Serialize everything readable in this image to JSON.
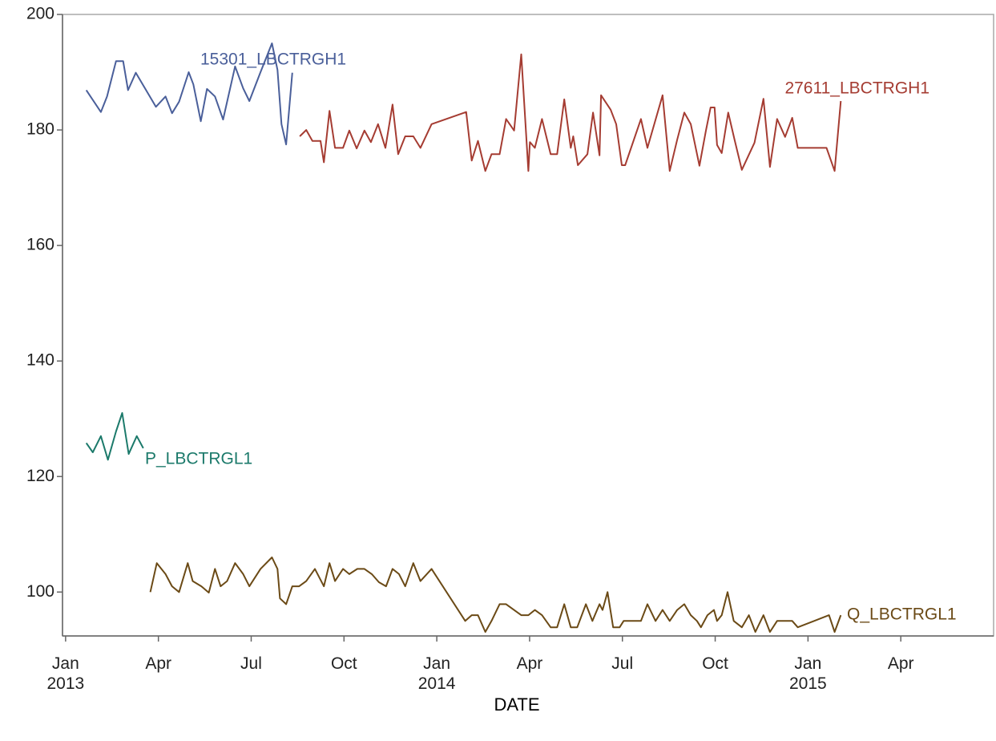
{
  "chart_data": {
    "type": "line",
    "x_label": "DATE",
    "xlim": [
      -0.1,
      30
    ],
    "ylim": [
      92.4,
      200
    ],
    "xticks": [
      {
        "value": 0,
        "label": "Jan 2013"
      },
      {
        "value": 3,
        "label": "Apr"
      },
      {
        "value": 6,
        "label": "Jul"
      },
      {
        "value": 9,
        "label": "Oct"
      },
      {
        "value": 12,
        "label": "Jan 2014"
      },
      {
        "value": 15,
        "label": "Apr"
      },
      {
        "value": 18,
        "label": "Jul"
      },
      {
        "value": 21,
        "label": "Oct"
      },
      {
        "value": 24,
        "label": "Jan 2015"
      },
      {
        "value": 27,
        "label": "Apr"
      }
    ],
    "yticks": [
      100,
      120,
      140,
      160,
      180,
      200
    ],
    "grid": false,
    "series": [
      {
        "name": "15301_LBCTRGH1",
        "color": "#4a5f9a",
        "x": [
          0.67,
          1.14,
          1.34,
          1.63,
          1.86,
          2.02,
          2.27,
          2.92,
          3.23,
          3.44,
          3.67,
          3.98,
          4.13,
          4.37,
          4.57,
          4.83,
          5.09,
          5.48,
          5.74,
          5.94,
          6.3,
          6.67,
          6.85,
          6.98,
          7.13,
          7.33
        ],
        "values": [
          186.9,
          183.1,
          185.8,
          191.9,
          191.9,
          186.9,
          189.9,
          184,
          185.8,
          182.9,
          184.9,
          190,
          187.9,
          181.5,
          187.1,
          185.8,
          181.8,
          191,
          187.2,
          185,
          190,
          195,
          190.4,
          181,
          177.5,
          189.9
        ]
      },
      {
        "name": "27611_LBCTRGH1",
        "color": "#a53c32",
        "x": [
          7.57,
          7.78,
          7.98,
          8.24,
          8.35,
          8.53,
          8.71,
          8.97,
          9.17,
          9.41,
          9.66,
          9.87,
          10.1,
          10.34,
          10.57,
          10.75,
          10.98,
          11.24,
          11.47,
          11.83,
          12.95,
          13.13,
          13.33,
          13.57,
          13.77,
          14.03,
          14.24,
          14.5,
          14.73,
          14.96,
          15.01,
          15.17,
          15.4,
          15.68,
          15.89,
          16.12,
          16.33,
          16.41,
          16.56,
          16.87,
          17.05,
          17.26,
          17.31,
          17.62,
          17.8,
          17.98,
          18.09,
          18.6,
          18.81,
          19.3,
          19.53,
          19.77,
          20.0,
          20.21,
          20.49,
          20.7,
          20.85,
          20.98,
          21.06,
          21.21,
          21.42,
          21.63,
          21.86,
          22.27,
          22.56,
          22.77,
          23.0,
          23.26,
          23.49,
          23.67,
          24.6,
          24.86,
          25.06
        ],
        "values": [
          178.9,
          180,
          178.1,
          178.1,
          174.4,
          183.3,
          176.9,
          176.9,
          179.9,
          176.8,
          179.9,
          177.9,
          181,
          176.9,
          184.4,
          175.8,
          178.9,
          178.9,
          176.9,
          181,
          183.1,
          174.7,
          178.1,
          172.9,
          175.8,
          175.8,
          181.9,
          179.9,
          193.1,
          172.9,
          177.9,
          176.9,
          181.9,
          175.8,
          175.8,
          185.3,
          176.9,
          178.9,
          173.9,
          175.8,
          183,
          175.6,
          186,
          183.5,
          181,
          173.9,
          173.9,
          181.9,
          176.9,
          186,
          172.9,
          178.3,
          183,
          181,
          173.8,
          179.9,
          183.9,
          183.9,
          177.4,
          176,
          183,
          178.2,
          173.1,
          177.8,
          185.4,
          173.6,
          181.9,
          178.8,
          182.1,
          176.9,
          176.9,
          172.9,
          185
        ]
      },
      {
        "name": "P_LBCTRGL1",
        "color": "#1c7a6b",
        "x": [
          0.67,
          0.88,
          1.14,
          1.37,
          1.63,
          1.83,
          2.04,
          2.3,
          2.51
        ],
        "values": [
          125.8,
          124.2,
          127,
          122.9,
          127.8,
          131,
          123.9,
          127,
          124.9
        ]
      },
      {
        "name": "Q_LBCTRGL1",
        "color": "#6b4a16",
        "x": [
          2.74,
          2.95,
          3.23,
          3.44,
          3.67,
          3.95,
          4.11,
          4.39,
          4.63,
          4.83,
          5.01,
          5.22,
          5.48,
          5.74,
          5.94,
          6.3,
          6.67,
          6.85,
          6.93,
          7.13,
          7.33,
          7.55,
          7.78,
          8.06,
          8.35,
          8.53,
          8.71,
          8.97,
          9.17,
          9.43,
          9.66,
          9.9,
          10.13,
          10.36,
          10.57,
          10.78,
          10.98,
          11.24,
          11.47,
          11.83,
          12.92,
          13.13,
          13.33,
          13.57,
          13.77,
          14.03,
          14.24,
          14.73,
          14.96,
          15.17,
          15.4,
          15.68,
          15.89,
          16.12,
          16.33,
          16.54,
          16.82,
          17.03,
          17.26,
          17.36,
          17.52,
          17.7,
          17.91,
          18.04,
          18.6,
          18.81,
          19.07,
          19.3,
          19.53,
          19.77,
          20.0,
          20.21,
          20.41,
          20.54,
          20.75,
          20.96,
          21.06,
          21.21,
          21.4,
          21.6,
          21.86,
          22.09,
          22.3,
          22.56,
          22.77,
          23.0,
          23.49,
          23.67,
          24.68,
          24.86,
          25.06
        ],
        "values": [
          100,
          105,
          103.1,
          101,
          100,
          105,
          101.9,
          101,
          99.9,
          104,
          101,
          101.9,
          105,
          103.1,
          101,
          104,
          106,
          104,
          98.9,
          97.9,
          101,
          101,
          101.9,
          104,
          101,
          105,
          101.9,
          104,
          103.1,
          104,
          104,
          103.1,
          101.7,
          101,
          104,
          103.1,
          101,
          105,
          101.9,
          104,
          95,
          96,
          96,
          93.1,
          95,
          97.9,
          97.9,
          96,
          96,
          96.9,
          96,
          93.9,
          93.9,
          97.9,
          93.9,
          93.9,
          97.9,
          95,
          97.9,
          96.9,
          100,
          93.9,
          93.9,
          95,
          95,
          97.9,
          95,
          96.9,
          95,
          96.9,
          97.9,
          96,
          95,
          93.9,
          96,
          96.9,
          95,
          96,
          100,
          95,
          93.9,
          96,
          93.1,
          96,
          93.1,
          95,
          95,
          93.9,
          96,
          93.1,
          96
        ]
      }
    ]
  }
}
